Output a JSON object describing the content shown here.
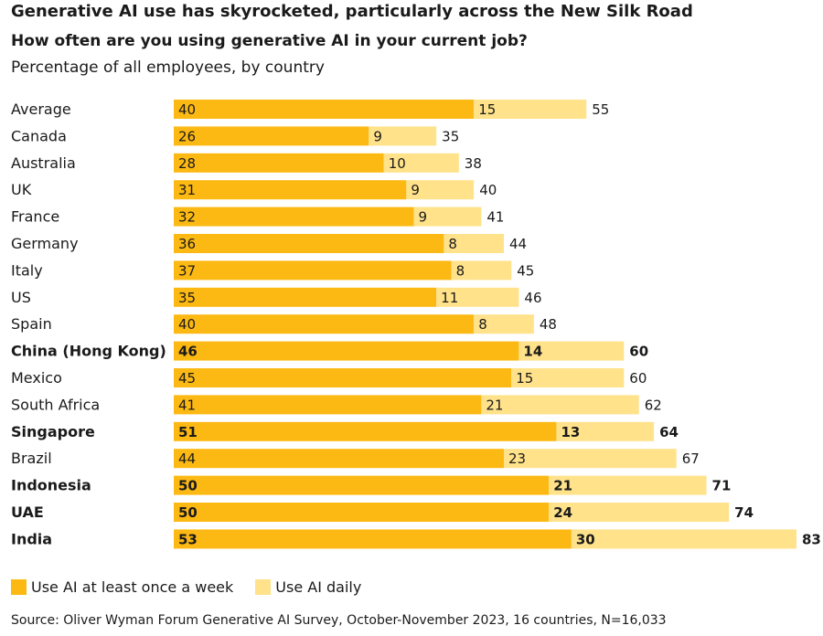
{
  "title": "Generative AI use has skyrocketed, particularly across the New Silk Road",
  "subtitle": "How often are you using generative AI in your current job?",
  "caption": "Percentage of all employees, by country",
  "source": "Source: Oliver Wyman Forum Generative AI Survey, October-November 2023, 16 countries, N=16,033",
  "colors": {
    "weekly": "#FDB913",
    "daily": "#FFE28A",
    "text": "#1a1a1a"
  },
  "chart_data": {
    "type": "bar",
    "orientation": "horizontal",
    "stacked": true,
    "xlim": [
      0,
      83
    ],
    "categories": [
      "Average",
      "Canada",
      "Australia",
      "UK",
      "France",
      "Germany",
      "Italy",
      "US",
      "Spain",
      "China (Hong Kong)",
      "Mexico",
      "South Africa",
      "Singapore",
      "Brazil",
      "Indonesia",
      "UAE",
      "India"
    ],
    "bold_categories": [
      "China (Hong Kong)",
      "Singapore",
      "Indonesia",
      "UAE",
      "India"
    ],
    "series": [
      {
        "name": "Use AI at least once a week",
        "values": [
          40,
          26,
          28,
          31,
          32,
          36,
          37,
          35,
          40,
          46,
          45,
          41,
          51,
          44,
          50,
          50,
          53
        ]
      },
      {
        "name": "Use AI daily",
        "values": [
          15,
          9,
          10,
          9,
          9,
          8,
          8,
          11,
          8,
          14,
          15,
          21,
          13,
          23,
          21,
          24,
          30
        ]
      }
    ],
    "totals": [
      55,
      35,
      38,
      40,
      41,
      44,
      45,
      46,
      48,
      60,
      60,
      62,
      64,
      67,
      71,
      74,
      83
    ],
    "legend_position": "bottom-left"
  }
}
